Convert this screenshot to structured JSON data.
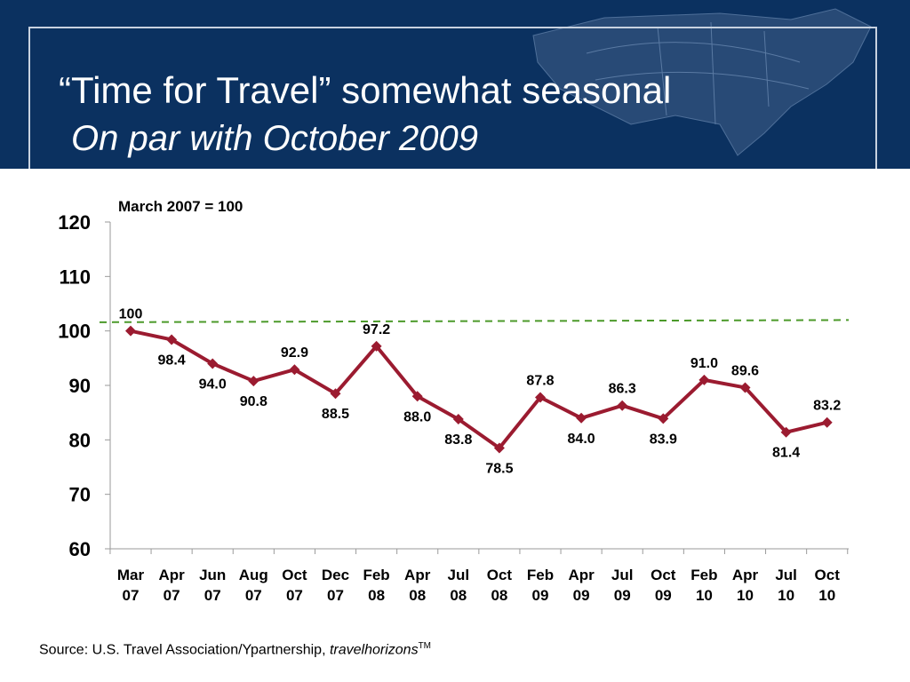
{
  "header": {
    "title": "“Time for Travel” somewhat seasonal",
    "subtitle": "On par with October 2009"
  },
  "footer": {
    "source_prefix": "Source:  U.S. Travel Association/Ypartnership, ",
    "source_brand": "travelhorizons",
    "trademark": "TM"
  },
  "colors": {
    "banner": "#0b3160",
    "series_line": "#9b1b30",
    "reference_line": "#4c9a2a"
  },
  "chart_data": {
    "type": "line",
    "title": "",
    "annotation": "March 2007 = 100",
    "xlabel": "",
    "ylabel": "",
    "ylim": [
      60,
      120
    ],
    "yticks": [
      60,
      70,
      80,
      90,
      100,
      110,
      120
    ],
    "grid": false,
    "categories": [
      [
        "Mar",
        "07"
      ],
      [
        "Apr",
        "07"
      ],
      [
        "Jun",
        "07"
      ],
      [
        "Aug",
        "07"
      ],
      [
        "Oct",
        "07"
      ],
      [
        "Dec",
        "07"
      ],
      [
        "Feb",
        "08"
      ],
      [
        "Apr",
        "08"
      ],
      [
        "Jul",
        "08"
      ],
      [
        "Oct",
        "08"
      ],
      [
        "Feb",
        "09"
      ],
      [
        "Apr",
        "09"
      ],
      [
        "Jul",
        "09"
      ],
      [
        "Oct",
        "09"
      ],
      [
        "Feb",
        "10"
      ],
      [
        "Apr",
        "10"
      ],
      [
        "Jul",
        "10"
      ],
      [
        "Oct",
        "10"
      ]
    ],
    "series": [
      {
        "values": [
          100,
          98.4,
          94.0,
          90.8,
          92.9,
          88.5,
          97.2,
          88.0,
          83.8,
          78.5,
          87.8,
          84.0,
          86.3,
          83.9,
          91.0,
          89.6,
          81.4,
          83.2
        ],
        "labels": [
          "100",
          "98.4",
          "94.0",
          "90.8",
          "92.9",
          "88.5",
          "97.2",
          "88.0",
          "83.8",
          "78.5",
          "87.8",
          "84.0",
          "86.3",
          "83.9",
          "91.0",
          "89.6",
          "81.4",
          "83.2"
        ],
        "label_positions": [
          "above",
          "below",
          "below",
          "below",
          "above",
          "below",
          "above",
          "below",
          "below",
          "below",
          "above",
          "below",
          "above",
          "below",
          "above",
          "above",
          "below",
          "above"
        ]
      }
    ],
    "reference_line": {
      "from": 101.6,
      "to": 102.0,
      "style": "dashed"
    }
  }
}
